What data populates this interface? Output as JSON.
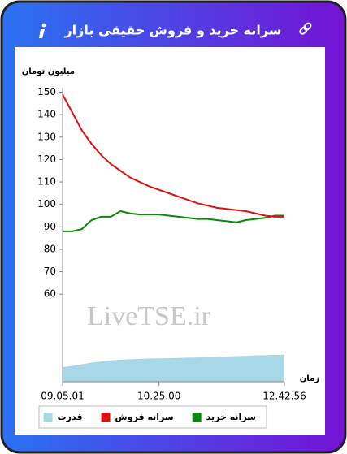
{
  "chart_data": {
    "type": "line",
    "title": "سرانه خرید و فروش حقیقی بازار",
    "y_label": "میلیون تومان",
    "x_label": "زمان",
    "watermark": "LiveTSE.ir",
    "categories": [
      "09.05.01",
      null,
      null,
      null,
      null,
      null,
      null,
      null,
      null,
      null,
      "10.25.00",
      null,
      null,
      null,
      null,
      null,
      null,
      null,
      null,
      null,
      null,
      null,
      null,
      "12.42.56"
    ],
    "series": [
      {
        "name": "سرانه خرید",
        "color": "#0a8a0a",
        "type": "line",
        "values": [
          88,
          88,
          89,
          93,
          94.5,
          94.5,
          97,
          96,
          95.5,
          95.5,
          95.5,
          95,
          94.5,
          94,
          93.5,
          93.5,
          93,
          92.5,
          92,
          93,
          93.5,
          94,
          95,
          95
        ]
      },
      {
        "name": "سرانه فروش",
        "color": "#e01010",
        "type": "line",
        "values": [
          149,
          141,
          133,
          127,
          122,
          118,
          115,
          112,
          110,
          108,
          106.5,
          105,
          103.5,
          102,
          100.5,
          99.5,
          98.5,
          98,
          97.5,
          97,
          96,
          95,
          94.5,
          94.5
        ]
      },
      {
        "name": "قدرت",
        "color": "#a8d8e8",
        "type": "area",
        "values": [
          27.5,
          28,
          28.8,
          29.5,
          30,
          30.5,
          30.8,
          31,
          31.2,
          31.3,
          31.4,
          31.5,
          31.6,
          31.7,
          31.8,
          31.9,
          32,
          32.2,
          32.4,
          32.5,
          32.7,
          32.8,
          33,
          33
        ]
      }
    ],
    "ylim": [
      21,
      152
    ],
    "yticks": [
      60,
      70,
      80,
      90,
      100,
      110,
      120,
      130,
      140,
      150
    ],
    "grid": false,
    "legend": "bottom"
  }
}
